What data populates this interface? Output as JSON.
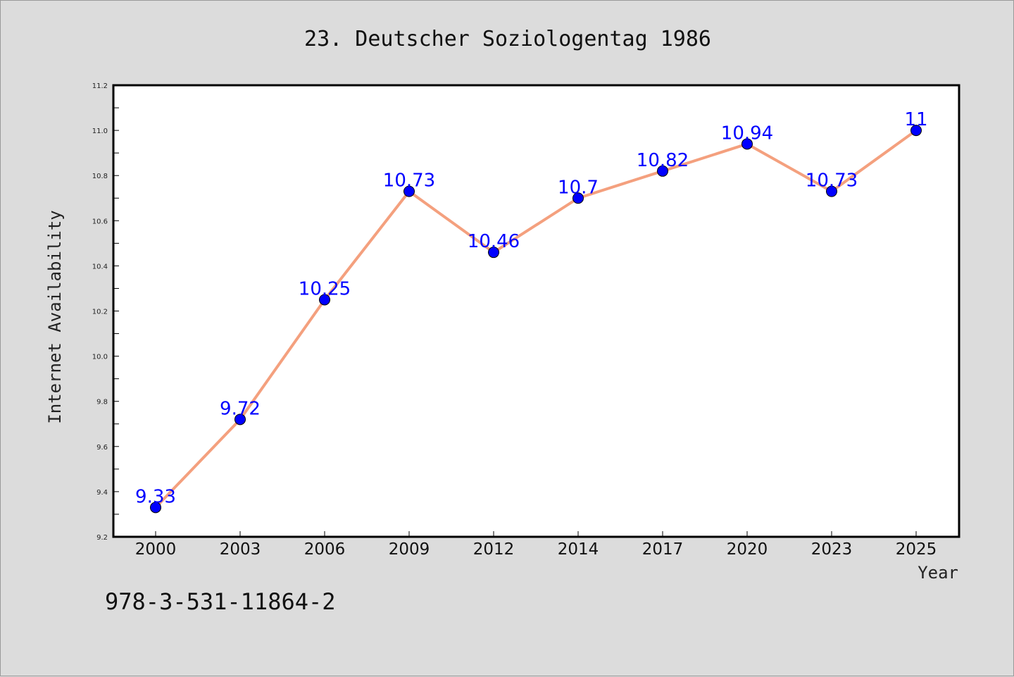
{
  "chart_data": {
    "type": "line",
    "title": "23. Deutscher Soziologentag 1986",
    "xlabel": "Year",
    "ylabel": "Internet Availability",
    "categories": [
      "2000",
      "2003",
      "2006",
      "2009",
      "2012",
      "2014",
      "2017",
      "2020",
      "2023",
      "2025"
    ],
    "values": [
      9.33,
      9.72,
      10.25,
      10.73,
      10.46,
      10.7,
      10.82,
      10.94,
      10.73,
      11
    ],
    "data_labels": [
      "9.33",
      "9.72",
      "10.25",
      "10.73",
      "10.46",
      "10.7",
      "10.82",
      "10.94",
      "10.73",
      "11"
    ],
    "ylim": [
      9.2,
      11.2
    ],
    "yticks": [
      "9.2",
      "9.4",
      "9.6",
      "9.8",
      "10.0",
      "10.2",
      "10.4",
      "10.6",
      "10.8",
      "11.0",
      "11.2"
    ],
    "grid": false,
    "line_color": "#f4a07e",
    "marker_color": "#0000ff",
    "label_color": "#0000ff",
    "background_color": "#dcdcdc"
  },
  "footer": {
    "isbn": "978-3-531-11864-2"
  }
}
